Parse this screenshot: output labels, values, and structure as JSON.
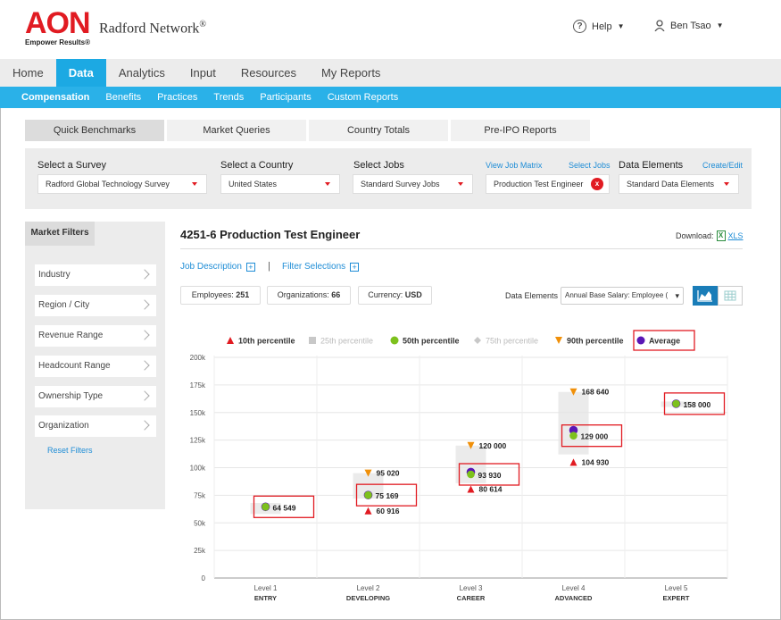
{
  "brand": {
    "logo": "AON",
    "tagline": "Empower Results®",
    "product": "Radford Network",
    "product_mark": "®"
  },
  "header": {
    "help": "Help",
    "user": "Ben Tsao"
  },
  "nav_primary": [
    "Home",
    "Data",
    "Analytics",
    "Input",
    "Resources",
    "My Reports"
  ],
  "nav_primary_active": "Data",
  "nav_secondary": [
    "Compensation",
    "Benefits",
    "Practices",
    "Trends",
    "Participants",
    "Custom Reports"
  ],
  "tabs": [
    "Quick Benchmarks",
    "Market Queries",
    "Country Totals",
    "Pre-IPO Reports"
  ],
  "filters": {
    "survey_label": "Select a Survey",
    "survey_value": "Radford Global Technology Survey",
    "country_label": "Select a Country",
    "country_value": "United States",
    "jobs_label": "Select Jobs",
    "jobs_value": "Standard Survey Jobs",
    "view_job_matrix": "View Job Matrix",
    "select_jobs": "Select Jobs",
    "job_chip": "Production Test Engineer",
    "job_chip_remove": "x",
    "data_elements_label": "Data Elements",
    "create_edit": "Create/Edit",
    "data_elements_value": "Standard Data Elements"
  },
  "market_filters": {
    "title": "Market Filters",
    "items": [
      "Industry",
      "Region / City",
      "Revenue Range",
      "Headcount Range",
      "Ownership Type",
      "Organization"
    ],
    "reset": "Reset Filters"
  },
  "content": {
    "title": "4251-6 Production Test Engineer",
    "download_label": "Download:",
    "download_xls": "XLS",
    "xls_icon": "X",
    "job_description": "Job Description",
    "filter_selections": "Filter Selections",
    "separator": "|",
    "employees_label": "Employees:",
    "employees": "251",
    "orgs_label": "Organizations:",
    "orgs": "66",
    "currency_label": "Currency:",
    "currency": "USD",
    "data_elements_label": "Data Elements",
    "data_elements_value": "Annual Base Salary: Employee (",
    "select_caret": "▾"
  },
  "chart_data": {
    "type": "scatter",
    "categories": [
      "Level 1",
      "Level 2",
      "Level 3",
      "Level 4",
      "Level 5"
    ],
    "category_sublabels": [
      "ENTRY",
      "DEVELOPING",
      "CAREER",
      "ADVANCED",
      "EXPERT"
    ],
    "ylim": [
      0,
      200000
    ],
    "yticks": [
      "0",
      "25k",
      "50k",
      "75k",
      "100k",
      "125k",
      "150k",
      "175k",
      "200k"
    ],
    "grid": true,
    "legend": [
      {
        "name": "10th percentile",
        "color": "#e11b22",
        "shape": "triangle-up",
        "muted": false
      },
      {
        "name": "25th percentile",
        "color": "#c8c8c8",
        "shape": "square",
        "muted": true
      },
      {
        "name": "50th percentile",
        "color": "#7dc11d",
        "shape": "circle",
        "muted": false
      },
      {
        "name": "75th percentile",
        "color": "#c8c8c8",
        "shape": "diamond",
        "muted": true
      },
      {
        "name": "90th percentile",
        "color": "#f0900a",
        "shape": "triangle-down",
        "muted": false
      },
      {
        "name": "Average",
        "color": "#5a16b5",
        "shape": "circle",
        "muted": false
      }
    ],
    "series": {
      "p10": [
        null,
        60916,
        80614,
        104930,
        null
      ],
      "p25": [
        58000,
        72000,
        86000,
        112000,
        155000
      ],
      "p50": [
        64549,
        75169,
        93930,
        129000,
        158000
      ],
      "p75": [
        68000,
        95020,
        120000,
        168640,
        160000
      ],
      "p90": [
        null,
        95020,
        120000,
        168640,
        null
      ],
      "average": [
        64549,
        75169,
        96000,
        134000,
        158000
      ]
    },
    "labels": {
      "p10": [
        null,
        "60 916",
        "80 614",
        "104 930",
        null
      ],
      "p50": [
        "64 549",
        "75 169",
        "93 930",
        "129 000",
        "158 000"
      ],
      "p90": [
        null,
        "95 020",
        "120 000",
        "168 640",
        null
      ]
    },
    "highlight_color": "#e11b22"
  }
}
